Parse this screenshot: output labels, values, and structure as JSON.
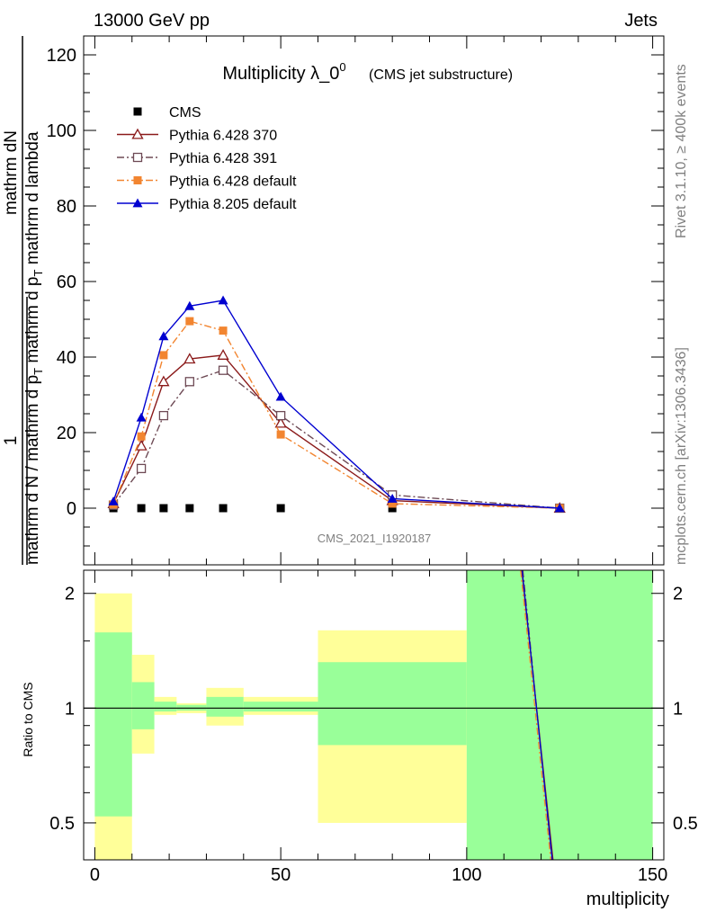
{
  "header": {
    "energy_label": "13000 GeV pp",
    "category_label": "Jets"
  },
  "side": {
    "rivet_label": "Rivet 3.1.10, ≥ 400k events",
    "mcplots_label": "mcplots.cern.ch [arXiv:1306.3436]"
  },
  "colors": {
    "cms": "#000000",
    "py370": "#8b1a1a",
    "py391": "#6e4a55",
    "pydefault": "#f28530",
    "py8": "#0000d0",
    "band_inner": "#99ff99",
    "band_outer": "#ffff99"
  },
  "chart_data": [
    {
      "type": "line",
      "title": "Multiplicity λ_0",
      "title_sup": "0",
      "subtitle": "(CMS jet substructure)",
      "watermark": "CMS_2021_I1920187",
      "xlabel": "multiplicity",
      "ylabel_lines": [
        "1",
        "mathrm dN"
      ],
      "ylabel_main": "mathrm d N / mathrm d p",
      "ylabel_sub": "T",
      "ylabel_mid": "mathrm d p",
      "ylabel_mid_sub": "T",
      "ylabel_tail": "mathrm d lambda",
      "ylabel_den": "mathrm d p",
      "xlim": [
        -3,
        153
      ],
      "ylim": [
        -15,
        125
      ],
      "yticks": [
        0,
        20,
        40,
        60,
        80,
        100,
        120
      ],
      "xticks": [
        0,
        50,
        100,
        150
      ],
      "series": [
        {
          "name": "CMS",
          "key": "cms",
          "marker": "square-filled",
          "line": "none",
          "x": [
            5,
            12.5,
            18.5,
            25.5,
            34.5,
            50,
            80,
            125
          ],
          "y": [
            0,
            0,
            0,
            0,
            0,
            0,
            0,
            0
          ]
        },
        {
          "name": "Pythia 6.428 370",
          "key": "py370",
          "marker": "triangle-open",
          "line": "solid",
          "x": [
            5,
            12.5,
            18.5,
            25.5,
            34.5,
            50,
            80,
            125
          ],
          "y": [
            1.2,
            16.5,
            33.5,
            39.5,
            40.5,
            22.5,
            2,
            0
          ]
        },
        {
          "name": "Pythia 6.428 391",
          "key": "py391",
          "marker": "square-open",
          "line": "dashdot",
          "x": [
            5,
            12.5,
            18.5,
            25.5,
            34.5,
            50,
            80,
            125
          ],
          "y": [
            0.8,
            10.5,
            24.5,
            33.5,
            36.5,
            24.5,
            3.5,
            0
          ]
        },
        {
          "name": "Pythia 6.428 default",
          "key": "pydefault",
          "marker": "square-filled",
          "line": "dashdot",
          "x": [
            5,
            12.5,
            18.5,
            25.5,
            34.5,
            50,
            80,
            125
          ],
          "y": [
            1,
            19,
            40.5,
            49.5,
            47,
            19.5,
            1.2,
            0
          ]
        },
        {
          "name": "Pythia 8.205 default",
          "key": "py8",
          "marker": "triangle-filled",
          "line": "solid",
          "x": [
            5,
            12.5,
            18.5,
            25.5,
            34.5,
            50,
            80,
            125
          ],
          "y": [
            1.8,
            24,
            45.5,
            53.5,
            55,
            29.5,
            2.5,
            0
          ]
        }
      ]
    },
    {
      "type": "area",
      "title": "Ratio to CMS",
      "ylabel": "Ratio to CMS",
      "xlabel": "multiplicity",
      "scale": "log",
      "ylim": [
        0.4,
        2.3
      ],
      "yticks": [
        0.5,
        1,
        2
      ],
      "ytick_labels": [
        "0.5",
        "1",
        "2"
      ],
      "xticks": [
        0,
        50,
        100,
        150
      ],
      "xtick_labels": [
        "0",
        "50",
        "100",
        "150"
      ],
      "reference": 1,
      "bins": [
        {
          "x0": 0,
          "x1": 10,
          "inner": [
            0.52,
            1.58
          ],
          "outer": [
            0.4,
            2.0
          ]
        },
        {
          "x0": 10,
          "x1": 16,
          "inner": [
            0.88,
            1.17
          ],
          "outer": [
            0.76,
            1.38
          ]
        },
        {
          "x0": 16,
          "x1": 22,
          "inner": [
            0.98,
            1.04
          ],
          "outer": [
            0.96,
            1.07
          ]
        },
        {
          "x0": 22,
          "x1": 30,
          "inner": [
            0.985,
            1.02
          ],
          "outer": [
            0.97,
            1.03
          ]
        },
        {
          "x0": 30,
          "x1": 40,
          "inner": [
            0.95,
            1.07
          ],
          "outer": [
            0.9,
            1.13
          ]
        },
        {
          "x0": 40,
          "x1": 60,
          "inner": [
            0.98,
            1.04
          ],
          "outer": [
            0.96,
            1.07
          ]
        },
        {
          "x0": 60,
          "x1": 100,
          "inner": [
            0.8,
            1.32
          ],
          "outer": [
            0.5,
            1.6
          ]
        },
        {
          "x0": 100,
          "x1": 150,
          "inner": [
            0.4,
            2.3
          ],
          "outer": [
            0.4,
            2.3
          ]
        }
      ],
      "ratio_lines": [
        {
          "key": "py370",
          "x": [
            114.8,
            123.2
          ],
          "y": [
            2.3,
            0.4
          ]
        },
        {
          "key": "py391",
          "x": [
            115.1,
            122.9
          ],
          "y": [
            2.3,
            0.4
          ]
        },
        {
          "key": "pydefault",
          "x": [
            114.5,
            122.6
          ],
          "y": [
            2.3,
            0.4
          ]
        },
        {
          "key": "py8",
          "x": [
            114.9,
            123.0
          ],
          "y": [
            2.3,
            0.4
          ]
        }
      ]
    }
  ]
}
